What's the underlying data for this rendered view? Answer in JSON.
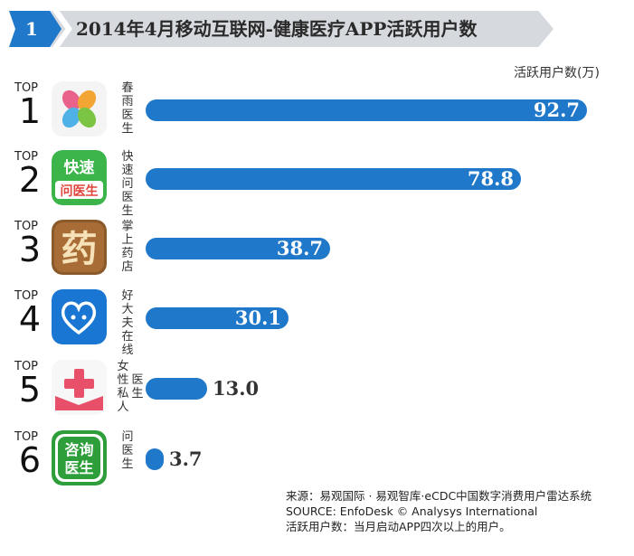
{
  "header": {
    "number": "1",
    "title": "2014年4月移动互联网-健康医疗APP活跃用户数"
  },
  "unit_label": "活跃用户数(万)",
  "top_label": "TOP",
  "colors": {
    "accent": "#1f78c9",
    "banner": "#d6d9de"
  },
  "chart_data": {
    "type": "bar",
    "orientation": "horizontal",
    "title": "2014年4月移动互联网-健康医疗APP活跃用户数",
    "unit": "活跃用户数(万)",
    "categories": [
      "春雨医生",
      "快速问医生",
      "掌上药店",
      "好大夫在线",
      "女性私人医生",
      "问医生"
    ],
    "ranks": [
      "1",
      "2",
      "3",
      "4",
      "5",
      "6"
    ],
    "values": [
      92.7,
      78.8,
      38.7,
      30.1,
      13.0,
      3.7
    ],
    "value_labels": [
      "92.7",
      "78.8",
      "38.7",
      "30.1",
      "13.0",
      "3.7"
    ],
    "icons": [
      "chunyu-clover-icon",
      "kuaisu-wenyisheng-icon",
      "yao-character-icon",
      "haodaifu-heart-icon",
      "nvxing-cross-icon",
      "zixun-yisheng-icon"
    ],
    "icon_texts": [
      null,
      [
        "快速",
        "问医生"
      ],
      "药",
      null,
      null,
      [
        "咨询",
        "医生"
      ]
    ],
    "name_columns": [
      [
        "春雨医生"
      ],
      [
        "快速问医生"
      ],
      [
        "掌上药店"
      ],
      [
        "好大夫在线"
      ],
      [
        "女性私人",
        "医生"
      ],
      [
        "问医生"
      ]
    ]
  },
  "footer": {
    "source_cn": "来源：易观国际 · 易观智库·eCDC中国数字消费用户雷达系统",
    "source_en": "SOURCE: EnfoDesk © Analysys International",
    "note": "活跃用户数：当月启动APP四次以上的用户。"
  }
}
